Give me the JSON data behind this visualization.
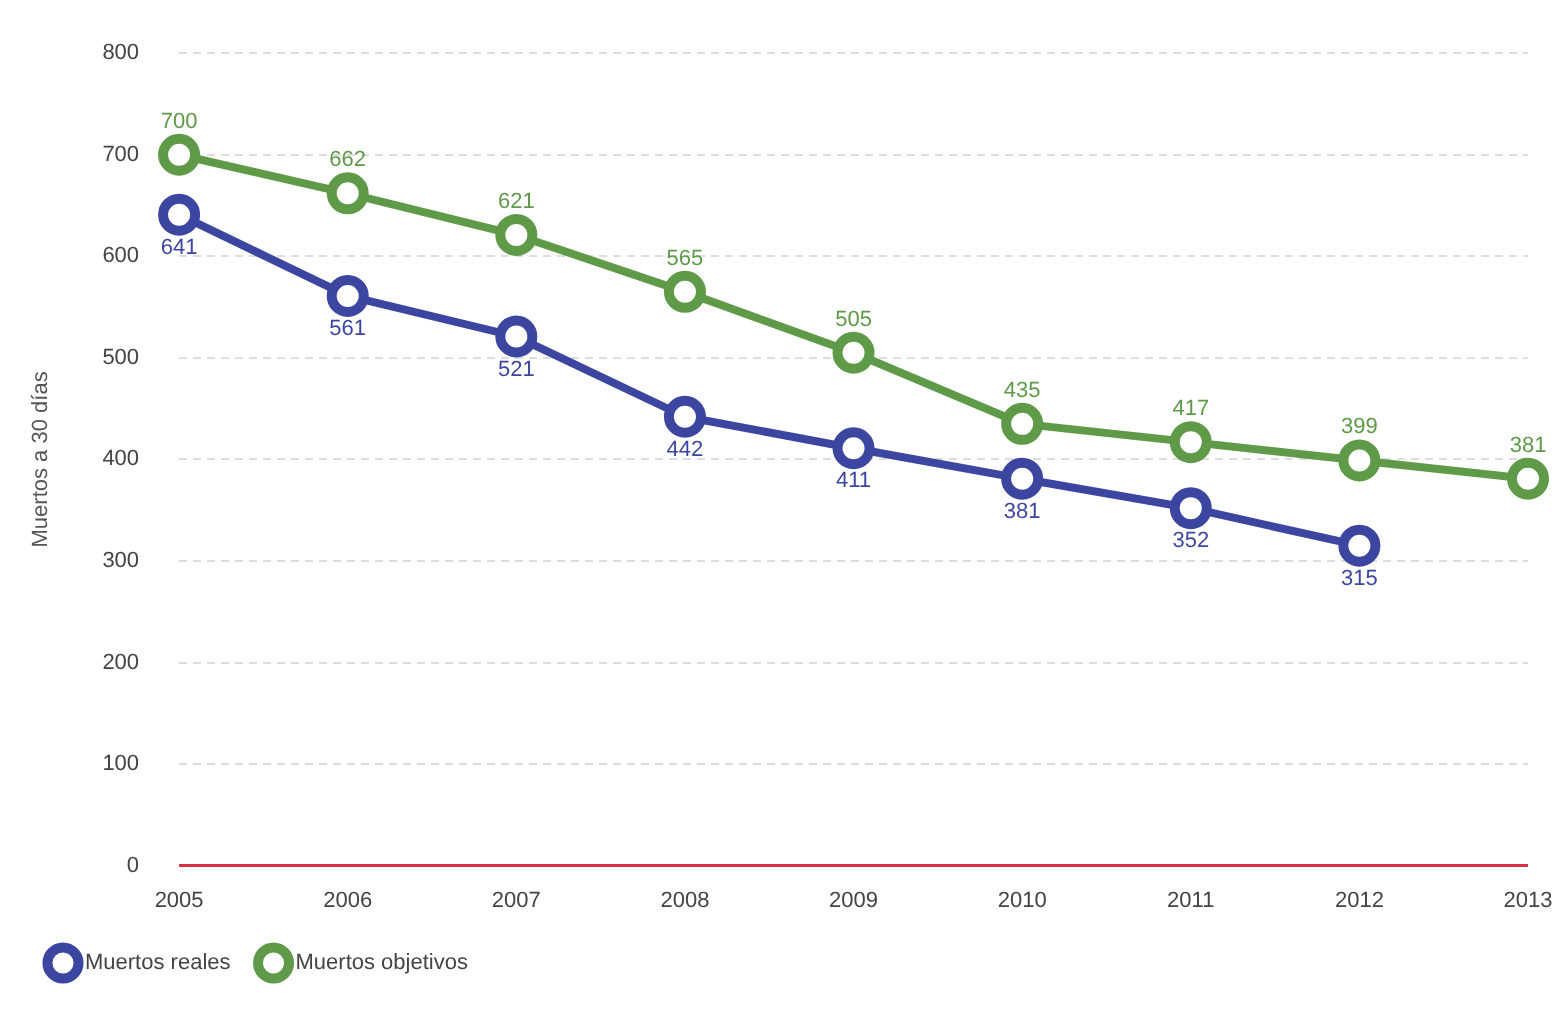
{
  "chart_data": {
    "type": "line",
    "ylabel": "Muertos a 30 días",
    "categories": [
      "2005",
      "2006",
      "2007",
      "2008",
      "2009",
      "2010",
      "2011",
      "2012",
      "2013"
    ],
    "series": [
      {
        "name": "Muertos reales",
        "color": "#3c46a0",
        "values": [
          641,
          561,
          521,
          442,
          411,
          381,
          352,
          315,
          null
        ]
      },
      {
        "name": "Muertos objetivos",
        "color": "#5e9a48",
        "values": [
          700,
          662,
          621,
          565,
          505,
          435,
          417,
          399,
          381
        ]
      }
    ],
    "ylim": [
      0,
      800
    ],
    "yticks": [
      0,
      100,
      200,
      300,
      400,
      500,
      600,
      700,
      800
    ],
    "grid": "y",
    "legend": "bottom left",
    "marker": "circle",
    "data_labels": true
  }
}
